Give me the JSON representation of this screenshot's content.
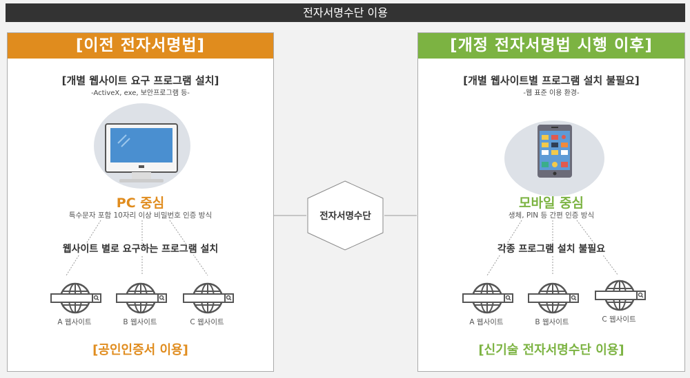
{
  "title": "전자서명수단 이용",
  "center": {
    "label": "전자서명수단"
  },
  "colors": {
    "orange": "#e08c1e",
    "green": "#7cb342",
    "dark": "#333333"
  },
  "left": {
    "header": "[이전 전자서명법]",
    "heading": "[개별 웹사이트 요구 프로그램 설치]",
    "subheading": "-ActiveX, exe, 보안프로그램 등-",
    "icon": "desktop-monitor-icon",
    "focus": "PC 중심",
    "description": "특수문자 포함 10자리 이상 비밀번호 인증 방식",
    "middle": "웹사이트 별로 요구하는 프로그램 설치",
    "sites": [
      "A 웹사이트",
      "B 웹사이트",
      "C 웹사이트"
    ],
    "bottom": "[공인인증서 이용]"
  },
  "right": {
    "header": "[개정 전자서명법 시행 이후]",
    "heading": "[개별 웹사이트별 프로그램 설치 불필요]",
    "subheading": "-웹 표준 이용 환경-",
    "icon": "smartphone-icon",
    "focus": "모바일 중심",
    "description": "생체, PIN 등 간편 인증 방식",
    "middle": "각종 프로그램 설치 불필요",
    "sites": [
      "A 웹사이트",
      "B 웹사이트",
      "C 웹사이트"
    ],
    "bottom": "[신기술 전자서명수단 이용]"
  }
}
